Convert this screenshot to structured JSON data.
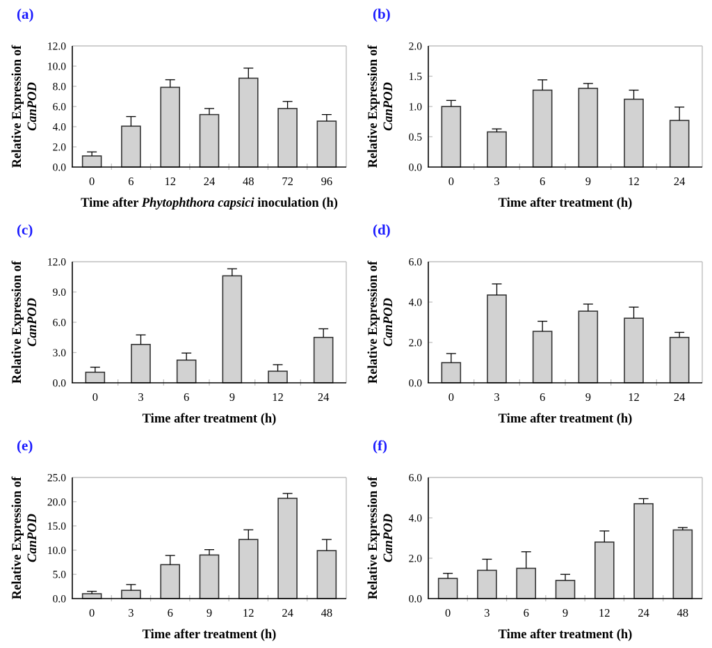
{
  "figure": {
    "background": "#ffffff",
    "style": {
      "bar_fill": "#d2d2d2",
      "bar_stroke": "#333333",
      "axis_color": "#000000",
      "plot_border_color": "#bfbfbf",
      "tick_color": "#bfbfbf",
      "error_color": "#000000",
      "panel_label_color": "#1a1aff",
      "text_color": "#000000"
    }
  },
  "chart_data": [
    {
      "id": "a",
      "type": "bar",
      "panel_label": "(a)",
      "ylabel_line1": "Relative Expression of",
      "ylabel_line2": "CanPOD",
      "xlabel_parts": [
        {
          "text": "Time after ",
          "italic": false
        },
        {
          "text": "Phytophthora capsici",
          "italic": true
        },
        {
          "text": "  inoculation (h)",
          "italic": false
        }
      ],
      "categories": [
        "0",
        "6",
        "12",
        "24",
        "48",
        "72",
        "96"
      ],
      "values": [
        1.1,
        4.05,
        7.9,
        5.2,
        8.8,
        5.8,
        4.55
      ],
      "errors": [
        0.4,
        0.95,
        0.75,
        0.6,
        1.0,
        0.7,
        0.65
      ],
      "ylim": [
        0,
        12
      ],
      "ytick_labels": [
        "0.0",
        "2.0",
        "4.0",
        "6.0",
        "8.0",
        "10.0",
        "12.0"
      ],
      "grid": false,
      "legend": null
    },
    {
      "id": "b",
      "type": "bar",
      "panel_label": "(b)",
      "ylabel_line1": "Relative Expression of",
      "ylabel_line2": "CanPOD",
      "xlabel_parts": [
        {
          "text": "Time after treatment (h)",
          "italic": false
        }
      ],
      "categories": [
        "0",
        "3",
        "6",
        "9",
        "12",
        "24"
      ],
      "values": [
        1.0,
        0.58,
        1.27,
        1.3,
        1.12,
        0.77
      ],
      "errors": [
        0.1,
        0.05,
        0.17,
        0.08,
        0.15,
        0.22
      ],
      "ylim": [
        0,
        2
      ],
      "ytick_labels": [
        "0.0",
        "0.5",
        "1.0",
        "1.5",
        "2.0"
      ],
      "grid": false,
      "legend": null
    },
    {
      "id": "c",
      "type": "bar",
      "panel_label": "(c)",
      "ylabel_line1": "Relative Expression of",
      "ylabel_line2": "CanPOD",
      "xlabel_parts": [
        {
          "text": "Time after treatment (h)",
          "italic": false
        }
      ],
      "categories": [
        "0",
        "3",
        "6",
        "9",
        "12",
        "24"
      ],
      "values": [
        1.05,
        3.8,
        2.25,
        10.6,
        1.15,
        4.5
      ],
      "errors": [
        0.5,
        0.95,
        0.7,
        0.7,
        0.65,
        0.85
      ],
      "ylim": [
        0,
        12
      ],
      "ytick_labels": [
        "0.0",
        "3.0",
        "6.0",
        "9.0",
        "12.0"
      ],
      "grid": false,
      "legend": null
    },
    {
      "id": "d",
      "type": "bar",
      "panel_label": "(d)",
      "ylabel_line1": "Relative Expression of",
      "ylabel_line2": "CanPOD",
      "xlabel_parts": [
        {
          "text": "Time after treatment (h)",
          "italic": false
        }
      ],
      "categories": [
        "0",
        "3",
        "6",
        "9",
        "12",
        "24"
      ],
      "values": [
        1.0,
        4.35,
        2.55,
        3.55,
        3.2,
        2.25
      ],
      "errors": [
        0.45,
        0.55,
        0.5,
        0.35,
        0.55,
        0.25
      ],
      "ylim": [
        0,
        6
      ],
      "ytick_labels": [
        "0.0",
        "2.0",
        "4.0",
        "6.0"
      ],
      "grid": false,
      "legend": null
    },
    {
      "id": "e",
      "type": "bar",
      "panel_label": "(e)",
      "ylabel_line1": "Relative Expression of",
      "ylabel_line2": "CanPOD",
      "xlabel_parts": [
        {
          "text": "Time after treatment (h)",
          "italic": false
        }
      ],
      "categories": [
        "0",
        "3",
        "6",
        "9",
        "12",
        "24",
        "48"
      ],
      "values": [
        1.0,
        1.7,
        7.0,
        9.0,
        12.2,
        20.7,
        9.9
      ],
      "errors": [
        0.5,
        1.2,
        1.9,
        1.1,
        2.0,
        1.0,
        2.3
      ],
      "ylim": [
        0,
        25
      ],
      "ytick_labels": [
        "0.0",
        "5.0",
        "10.0",
        "15.0",
        "20.0",
        "25.0"
      ],
      "grid": false,
      "legend": null
    },
    {
      "id": "f",
      "type": "bar",
      "panel_label": "(f)",
      "ylabel_line1": "Relative Expression of",
      "ylabel_line2": "CanPOD",
      "xlabel_parts": [
        {
          "text": "Time after treatment (h)",
          "italic": false
        }
      ],
      "categories": [
        "0",
        "3",
        "6",
        "9",
        "12",
        "24",
        "48"
      ],
      "values": [
        1.0,
        1.4,
        1.5,
        0.9,
        2.8,
        4.7,
        3.4
      ],
      "errors": [
        0.25,
        0.55,
        0.82,
        0.3,
        0.55,
        0.25,
        0.12
      ],
      "ylim": [
        0,
        6
      ],
      "ytick_labels": [
        "0.0",
        "2.0",
        "4.0",
        "6.0"
      ],
      "grid": false,
      "legend": null
    }
  ]
}
